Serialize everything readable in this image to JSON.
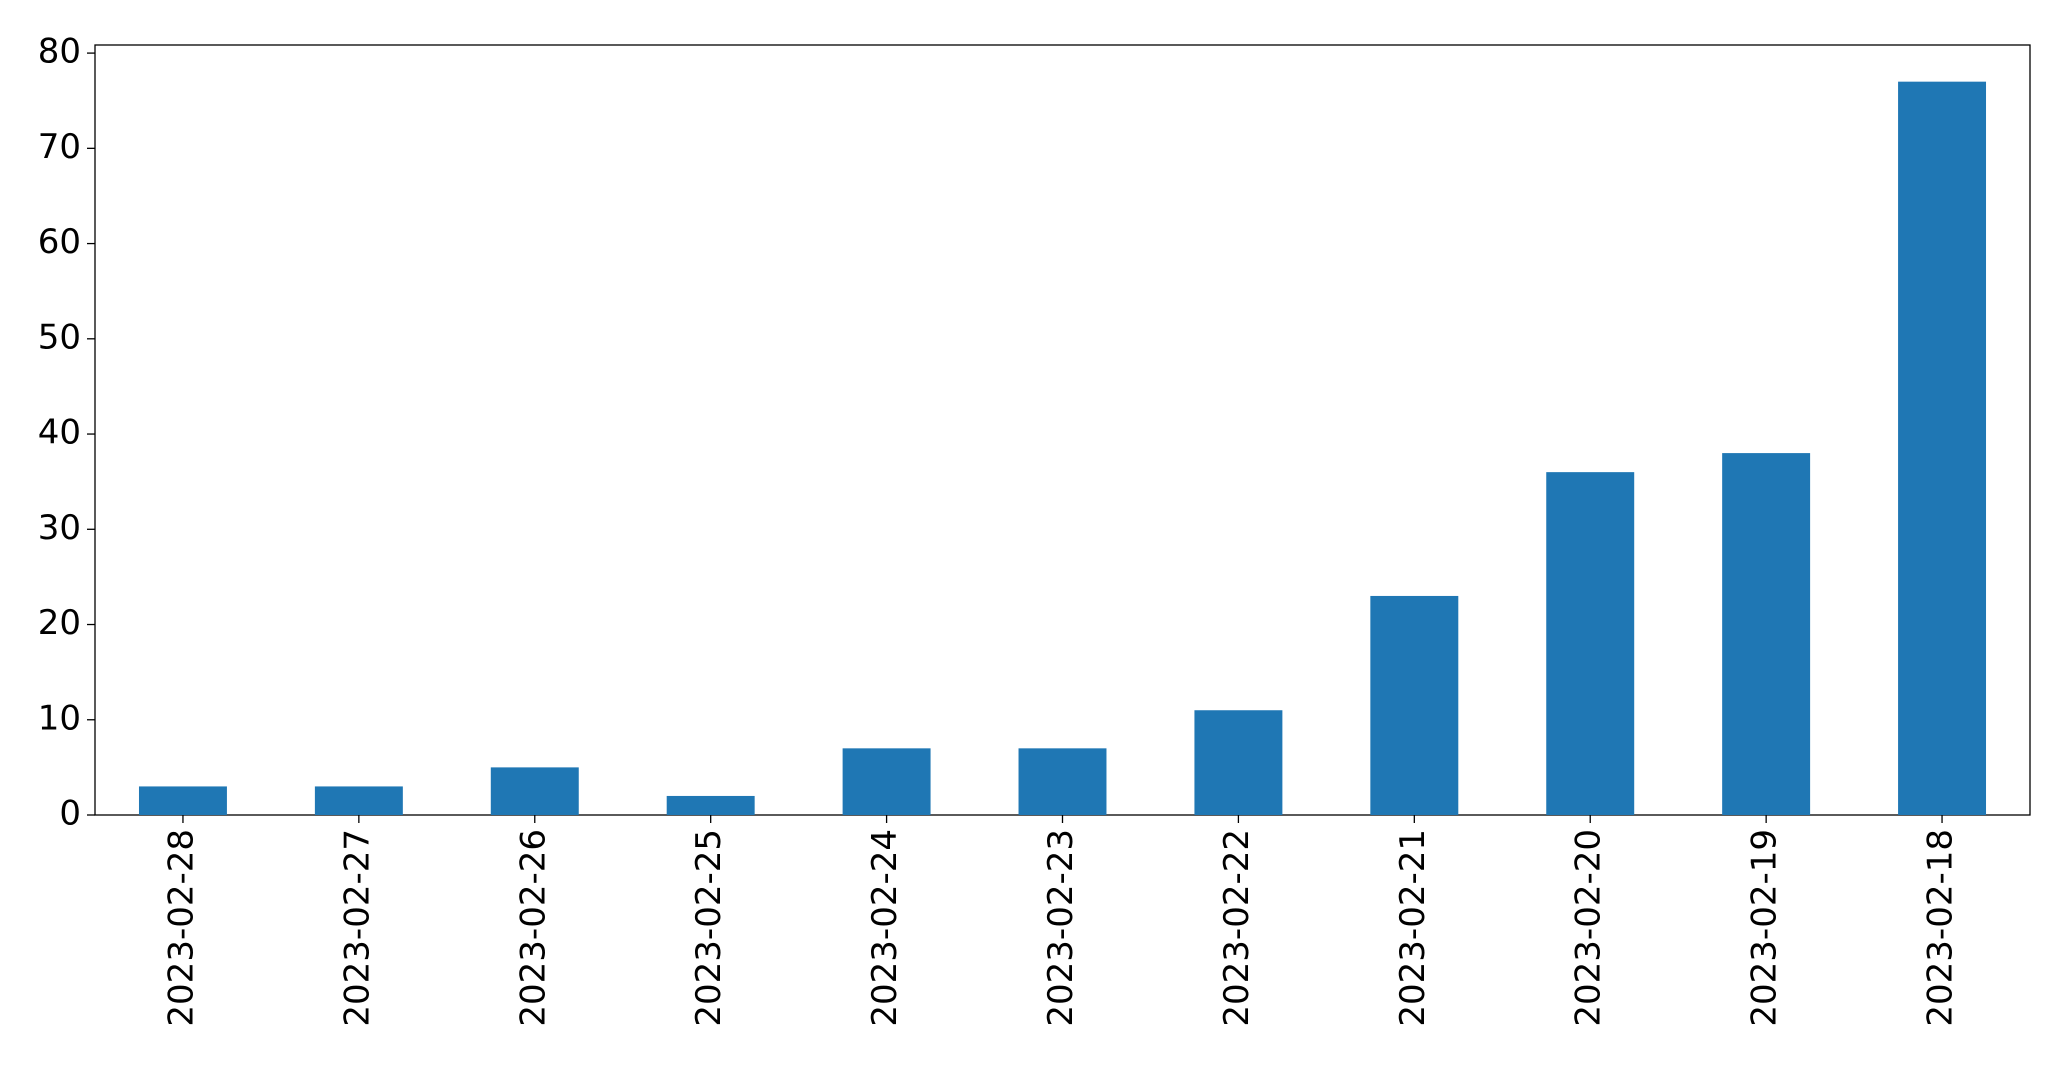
{
  "chart_data": {
    "type": "bar",
    "categories": [
      "2023-02-28",
      "2023-02-27",
      "2023-02-26",
      "2023-02-25",
      "2023-02-24",
      "2023-02-23",
      "2023-02-22",
      "2023-02-21",
      "2023-02-20",
      "2023-02-19",
      "2023-02-18"
    ],
    "values": [
      3,
      3,
      5,
      2,
      7,
      7,
      11,
      23,
      36,
      38,
      77
    ],
    "color": "#1f77b4",
    "ylim": [
      0,
      80.85
    ],
    "yticks": [
      0,
      10,
      20,
      30,
      40,
      50,
      60,
      70,
      80
    ],
    "grid": false
  }
}
